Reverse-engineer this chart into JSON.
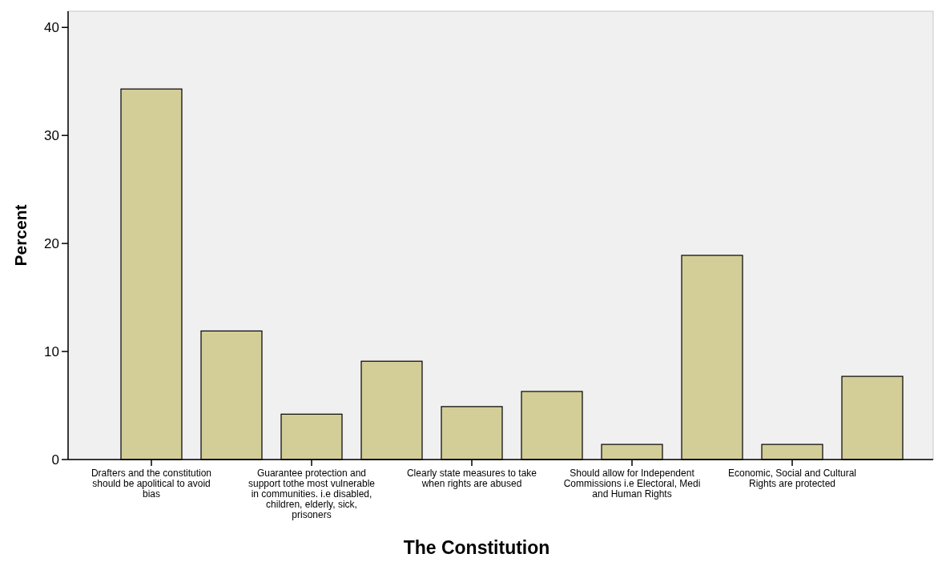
{
  "chart_data": {
    "type": "bar",
    "xlabel": "The Constitution",
    "ylabel": "Percent",
    "categories": [
      "Drafters and the constitution should be apolitical to avoid bias",
      null,
      "Guarantee protection and support tothe most vulnerable in communities. i.e disabled, children, elderly, sick, prisoners",
      null,
      "Clearly state measures to take when rights are abused",
      null,
      "Should allow for Independent Commissions i.e Electoral, Medi and Human Rights",
      null,
      "Economic, Social and Cultural Rights are protected",
      null
    ],
    "values": [
      34.3,
      11.9,
      4.2,
      9.1,
      4.9,
      6.3,
      1.4,
      18.9,
      1.4,
      7.7
    ],
    "color": "#d3ce97",
    "ylim": [
      0,
      41.5
    ],
    "yticks": [
      0,
      10,
      20,
      30,
      40
    ],
    "grid": false
  }
}
